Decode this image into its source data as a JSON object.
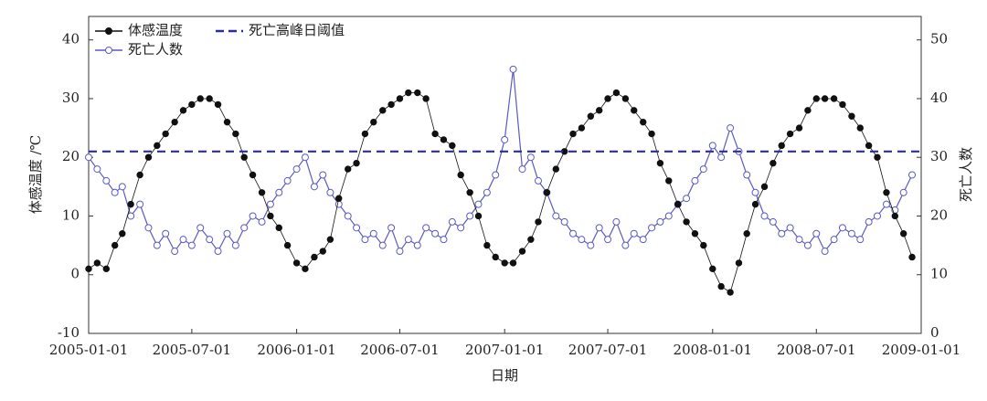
{
  "chart_data": {
    "type": "line",
    "x_label": "日期",
    "y_label": "体感温度 /℃",
    "y2_label": "死亡人数",
    "x": [
      "2005-01-01",
      "2005-01-16",
      "2005-02-01",
      "2005-02-16",
      "2005-03-01",
      "2005-03-16",
      "2005-04-01",
      "2005-04-16",
      "2005-05-01",
      "2005-05-16",
      "2005-06-01",
      "2005-06-16",
      "2005-07-01",
      "2005-07-16",
      "2005-08-01",
      "2005-08-16",
      "2005-09-01",
      "2005-09-16",
      "2005-10-01",
      "2005-10-16",
      "2005-11-01",
      "2005-11-16",
      "2005-12-01",
      "2005-12-16",
      "2006-01-01",
      "2006-01-16",
      "2006-02-01",
      "2006-02-16",
      "2006-03-01",
      "2006-03-16",
      "2006-04-01",
      "2006-04-16",
      "2006-05-01",
      "2006-05-16",
      "2006-06-01",
      "2006-06-16",
      "2006-07-01",
      "2006-07-16",
      "2006-08-01",
      "2006-08-16",
      "2006-09-01",
      "2006-09-16",
      "2006-10-01",
      "2006-10-16",
      "2006-11-01",
      "2006-11-16",
      "2006-12-01",
      "2006-12-16",
      "2007-01-01",
      "2007-01-16",
      "2007-02-01",
      "2007-02-16",
      "2007-03-01",
      "2007-03-16",
      "2007-04-01",
      "2007-04-16",
      "2007-05-01",
      "2007-05-16",
      "2007-06-01",
      "2007-06-16",
      "2007-07-01",
      "2007-07-16",
      "2007-08-01",
      "2007-08-16",
      "2007-09-01",
      "2007-09-16",
      "2007-10-01",
      "2007-10-16",
      "2007-11-01",
      "2007-11-16",
      "2007-12-01",
      "2007-12-16",
      "2008-01-01",
      "2008-01-16",
      "2008-02-01",
      "2008-02-16",
      "2008-03-01",
      "2008-03-16",
      "2008-04-01",
      "2008-04-16",
      "2008-05-01",
      "2008-05-16",
      "2008-06-01",
      "2008-06-16",
      "2008-07-01",
      "2008-07-16",
      "2008-08-01",
      "2008-08-16",
      "2008-09-01",
      "2008-09-16",
      "2008-10-01",
      "2008-10-16",
      "2008-11-01",
      "2008-11-16",
      "2008-12-01",
      "2008-12-16"
    ],
    "series": [
      {
        "name": "体感温度",
        "color": "#111111",
        "marker": "filled",
        "values": [
          1,
          2,
          1,
          5,
          7,
          12,
          17,
          20,
          22,
          24,
          26,
          28,
          29,
          30,
          30,
          29,
          26,
          24,
          20,
          17,
          14,
          10,
          8,
          5,
          2,
          1,
          3,
          4,
          6,
          13,
          18,
          19,
          24,
          26,
          28,
          29,
          30,
          31,
          31,
          30,
          24,
          23,
          22,
          17,
          14,
          10,
          5,
          3,
          2,
          2,
          4,
          6,
          9,
          14,
          18,
          21,
          24,
          25,
          27,
          28,
          30,
          31,
          30,
          28,
          26,
          24,
          19,
          16,
          12,
          9,
          7,
          5,
          1,
          -2,
          -3,
          2,
          7,
          12,
          15,
          19,
          22,
          24,
          25,
          28,
          30,
          30,
          30,
          29,
          27,
          25,
          22,
          20,
          14,
          10,
          7,
          3
        ]
      },
      {
        "name": "死亡人数",
        "color": "#5a5ac4",
        "marker": "hollow",
        "axis": "y2",
        "values": [
          30,
          28,
          26,
          24,
          25,
          20,
          22,
          18,
          15,
          17,
          14,
          16,
          15,
          18,
          16,
          14,
          17,
          15,
          18,
          20,
          19,
          22,
          24,
          26,
          28,
          30,
          25,
          27,
          24,
          22,
          20,
          18,
          16,
          17,
          15,
          18,
          14,
          16,
          15,
          18,
          17,
          16,
          19,
          18,
          20,
          22,
          24,
          27,
          33,
          45,
          28,
          30,
          26,
          24,
          20,
          19,
          17,
          16,
          15,
          18,
          16,
          19,
          15,
          17,
          16,
          18,
          19,
          20,
          22,
          23,
          26,
          28,
          32,
          30,
          35,
          31,
          27,
          24,
          20,
          19,
          17,
          18,
          16,
          15,
          17,
          14,
          16,
          18,
          17,
          16,
          19,
          20,
          22,
          21,
          24,
          27
        ]
      }
    ],
    "threshold": {
      "name": "死亡高峰日阈值",
      "value": 31,
      "axis": "y2",
      "color": "#2b2ba8"
    },
    "xlim": [
      "2005-01-01",
      "2009-01-01"
    ],
    "xticks": [
      "2005-01-01",
      "2005-07-01",
      "2006-01-01",
      "2006-07-01",
      "2007-01-01",
      "2007-07-01",
      "2008-01-01",
      "2008-07-01",
      "2009-01-01"
    ],
    "ylim": [
      -10,
      44
    ],
    "yticks": [
      -10,
      0,
      10,
      20,
      30,
      40
    ],
    "y2lim": [
      0,
      54
    ],
    "y2ticks": [
      0,
      10,
      20,
      30,
      40,
      50
    ]
  }
}
